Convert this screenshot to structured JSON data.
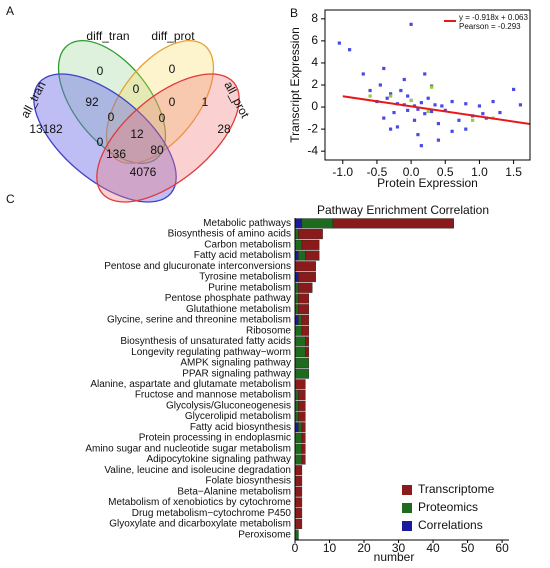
{
  "chart_data": [
    {
      "type": "venn",
      "panel_label": "A",
      "sets": [
        {
          "name": "diff_tran",
          "color": "#2e9b2e",
          "fill": "rgba(120,200,120,0.25)"
        },
        {
          "name": "diff_prot",
          "color": "#e8a030",
          "fill": "rgba(250,220,90,0.3)"
        },
        {
          "name": "all_tran",
          "color": "#4040c8",
          "fill": "rgba(110,110,230,0.45)"
        },
        {
          "name": "all_prot",
          "color": "#e03a3a",
          "fill": "rgba(240,120,120,0.35)"
        }
      ],
      "regions": [
        0,
        0,
        92,
        0,
        0,
        1,
        13182,
        0,
        12,
        0,
        28,
        0,
        136,
        80,
        4076
      ]
    },
    {
      "type": "scatter",
      "panel_label": "B",
      "x_label": "Protein Expression",
      "y_label": "Transcript Expression",
      "xlim": [
        -1.26,
        1.74
      ],
      "ylim": [
        -4.8,
        8.8
      ],
      "xticks": [
        {
          "value": -1,
          "label": "-1.0"
        },
        -0.5,
        {
          "value": 0,
          "label": "0.0"
        },
        0.5,
        {
          "value": 1,
          "label": "1.0"
        },
        1.5
      ],
      "yticks": [
        -4,
        -2,
        0,
        2,
        4,
        6,
        8
      ],
      "series": [
        {
          "color": "#4a4ae8",
          "x": [
            -0.9,
            -1.05,
            -0.7,
            -0.6,
            -0.5,
            -0.45,
            -0.4,
            -0.35,
            -0.3,
            -0.25,
            -0.2,
            -0.15,
            -0.1,
            -0.05,
            0,
            0.05,
            0.1,
            0.15,
            0.2,
            0.25,
            0.3,
            0.35,
            0.4,
            0.45,
            0.5,
            0.6,
            0.7,
            0.8,
            0.9,
            1.0,
            1.1,
            1.2,
            1.3,
            1.5,
            1.6,
            -0.3,
            -0.1,
            0.1,
            0.2,
            0.0,
            -0.2,
            0.3,
            0.4,
            -0.4,
            0.6,
            0.05,
            -0.05,
            0.15,
            0.8,
            1.05
          ],
          "y": [
            5.2,
            5.8,
            3.0,
            1.5,
            0.5,
            2.0,
            -1.0,
            0.8,
            1.2,
            -0.5,
            0.3,
            1.5,
            0.2,
            -0.3,
            0.6,
            0.1,
            -0.2,
            0.4,
            -0.6,
            0.8,
            -0.4,
            0.2,
            -1.5,
            0.1,
            -0.3,
            0.5,
            -1.2,
            0.3,
            -0.8,
            0.1,
            -1.0,
            0.5,
            -0.5,
            1.6,
            0.2,
            -2.0,
            2.5,
            -2.5,
            3.0,
            7.5,
            -1.8,
            1.9,
            -3.0,
            3.5,
            -2.2,
            -1.2,
            1.0,
            -3.5,
            -2.0,
            -0.6
          ]
        },
        {
          "color": "#9acd32",
          "x": [
            -0.3,
            0.0,
            0.3,
            -0.6,
            1.2,
            0.9,
            0.25
          ],
          "y": [
            1.0,
            0.6,
            1.8,
            1.0,
            -1.0,
            -1.2,
            -0.4
          ]
        }
      ],
      "fit": {
        "slope": -0.918,
        "intercept": 0.063,
        "color": "#e81818",
        "label": "y = -0.918x + 0.063"
      },
      "pearson": {
        "value": -0.293,
        "label": "Pearson = -0.293"
      }
    },
    {
      "type": "hbar_stacked",
      "panel_label": "C",
      "title": "Pathway Enrichment Correlation",
      "x_label": "number",
      "xlim": [
        0,
        62
      ],
      "xticks": [
        0,
        10,
        20,
        30,
        40,
        50,
        60
      ],
      "categories": [
        "Metabolic pathways",
        "Biosynthesis of amino acids",
        "Carbon metabolism",
        "Fatty acid metabolism",
        "Pentose and glucuronate interconversions",
        "Tyrosine metabolism",
        "Purine metabolism",
        "Pentose phosphate pathway",
        "Glutathione metabolism",
        "Glycine, serine and threonine metabolism",
        "Ribosome",
        "Biosynthesis of unsaturated fatty acids",
        "Longevity regulating pathway−worm",
        "AMPK signaling pathway",
        "PPAR signaling pathway",
        "Alanine, aspartate and glutamate metabolism",
        "Fructose and mannose metabolism",
        "Glycolysis/Gluconeogenesis",
        "Glycerolipid metabolism",
        "Fatty acid biosynthesis",
        "Protein processing in endoplasmic",
        "Amino sugar and nucleotide sugar metabolism",
        "Adipocytokine signaling pathway",
        "Valine, leucine and isoleucine degradation",
        "Folate biosynthesis",
        "Beta−Alanine metabolism",
        "Metabolism of xenobiotics by cytochrome",
        "Drug metabolism−cytochrome P450",
        "Glyoxylate and dicarboxylate metabolism",
        "Peroxisome"
      ],
      "series": [
        {
          "name": "Transcriptome",
          "color": "#8b1a1a",
          "values": [
            35,
            7,
            5,
            4,
            6,
            5,
            4,
            3,
            3,
            2,
            2,
            1,
            1,
            0,
            0,
            3,
            2,
            2,
            2,
            1,
            1,
            1,
            1,
            2,
            2,
            2,
            2,
            2,
            2,
            0
          ]
        },
        {
          "name": "Proteomics",
          "color": "#1e6b1e",
          "values": [
            9,
            1,
            2,
            2,
            0,
            0,
            1,
            1,
            1,
            1,
            2,
            3,
            3,
            4,
            4,
            0,
            1,
            1,
            1,
            1,
            2,
            2,
            2,
            0,
            0,
            0,
            0,
            0,
            0,
            1
          ]
        },
        {
          "name": "Correlations",
          "color": "#1a1a9b",
          "values": [
            2,
            0,
            0,
            1,
            0,
            1,
            0,
            0,
            0,
            1,
            0,
            0,
            0,
            0,
            0,
            0,
            0,
            0,
            0,
            1,
            0,
            0,
            0,
            0,
            0,
            0,
            0,
            0,
            0,
            0
          ]
        }
      ],
      "legend": "bottom-right"
    }
  ]
}
